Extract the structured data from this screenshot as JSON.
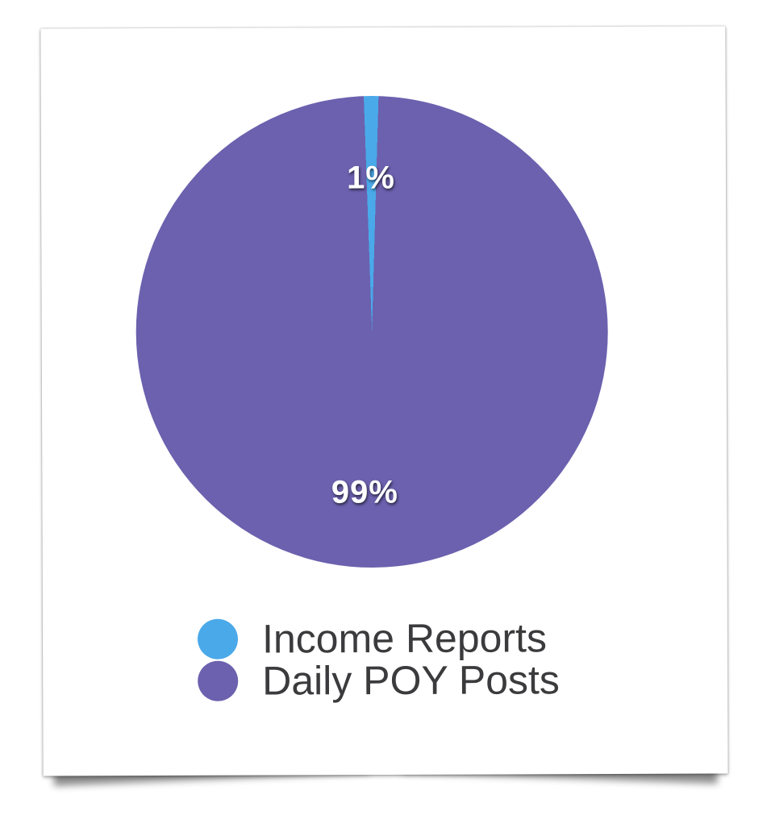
{
  "page": {
    "background_color": "#ffffff",
    "card_color": "#ffffff"
  },
  "chart_data": {
    "type": "pie",
    "title": "",
    "categories": [
      "Income Reports",
      "Daily POY Posts"
    ],
    "values": [
      1,
      99
    ],
    "colors": [
      "#4AA9E9",
      "#6B61AE"
    ],
    "start_angle": "1% slice centered at 12 o'clock",
    "legend_position": "bottom-left inside card",
    "slices": [
      {
        "label": "Income Reports",
        "value": 1,
        "percent_label": "1%",
        "color": "#4AA9E9"
      },
      {
        "label": "Daily POY Posts",
        "value": 99,
        "percent_label": "99%",
        "color": "#6B61AE"
      }
    ],
    "label_text_color": "#ffffff",
    "legend_text_color": "#3b3b3d"
  }
}
